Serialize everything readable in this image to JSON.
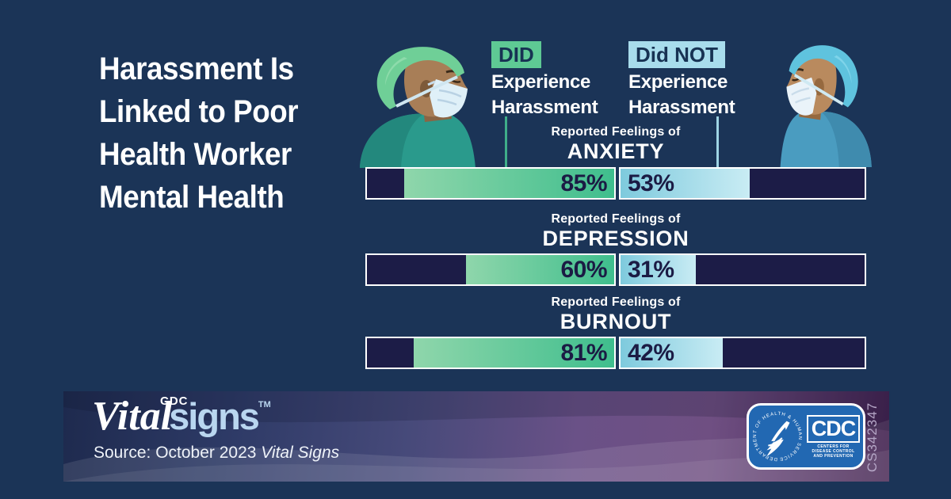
{
  "title": {
    "lines": [
      "Harassment Is",
      "Linked to Poor",
      "Health Worker",
      "Mental Health"
    ]
  },
  "legend": {
    "did": {
      "tag": "DID",
      "line1": "Experience",
      "line2": "Harassment"
    },
    "did_not": {
      "tag": "Did NOT",
      "line1": "Experience",
      "line2": "Harassment"
    }
  },
  "chart_data": {
    "type": "bar",
    "title": "Harassment Is Linked to Poor Health Worker Mental Health",
    "categories": [
      "ANXIETY",
      "DEPRESSION",
      "BURNOUT"
    ],
    "category_prefix": "Reported Feelings of",
    "series": [
      {
        "name": "DID Experience Harassment",
        "values": [
          85,
          60,
          81
        ],
        "color": "#3fbe8d"
      },
      {
        "name": "Did NOT Experience Harassment",
        "values": [
          53,
          31,
          42
        ],
        "color": "#a8dcec"
      }
    ],
    "unit": "%",
    "xlim": [
      0,
      100
    ],
    "layout": "mirrored paired horizontal bars, DID fills from right, Did NOT fills from left",
    "legend_position": "top"
  },
  "rows": [
    {
      "prefix": "Reported Feelings of",
      "label": "ANXIETY",
      "did": 85,
      "did_label": "85%",
      "did_not": 53,
      "did_not_label": "53%"
    },
    {
      "prefix": "Reported Feelings of",
      "label": "DEPRESSION",
      "did": 60,
      "did_label": "60%",
      "did_not": 31,
      "did_not_label": "31%"
    },
    {
      "prefix": "Reported Feelings of",
      "label": "BURNOUT",
      "did": 81,
      "did_label": "81%",
      "did_not": 42,
      "did_not_label": "42%"
    }
  ],
  "footer": {
    "logo_cdc_small": "CDC",
    "logo_vital": "Vital",
    "logo_signs": "signs",
    "logo_tm": "TM",
    "source_prefix": "Source: October 2023 ",
    "source_title": "Vital Signs",
    "hhs_seal_text": "DEPARTMENT OF HEALTH & HUMAN SERVICES USA",
    "cdc_acronym": "CDC",
    "cdc_subtext": "CENTERS FOR DISEASE CONTROL AND PREVENTION",
    "cs_number": "CS342347"
  },
  "colors": {
    "background": "#1b3457",
    "bar_track": "#1c1c47",
    "did_fill": "#3fbe8d",
    "did_not_fill": "#a8dcec",
    "did_chip": "#5ec994",
    "did_not_chip": "#a8dcec",
    "badge_blue": "#2268b2"
  }
}
